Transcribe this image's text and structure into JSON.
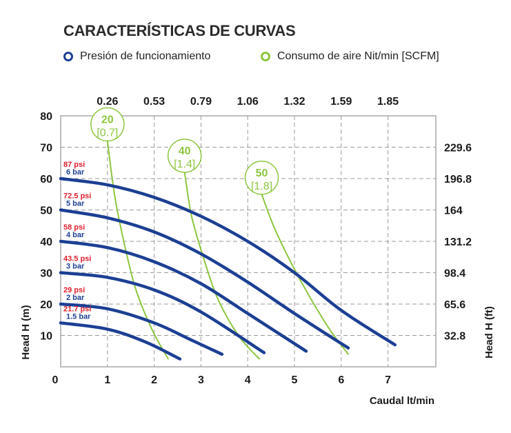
{
  "title": "CARACTERÍSTICAS DE CURVAS",
  "legend": [
    {
      "label": "Presión de funcionamiento",
      "color": "#1c3f94"
    },
    {
      "label": "Consumo de aire Nit/min [SCFM]",
      "color": "#8dc63f"
    }
  ],
  "chart_data": {
    "type": "line",
    "xlabel": "Caudal lt/min",
    "ylabel": "Head H (m)",
    "y2label": "Head H (ft)",
    "xlim": [
      0,
      8
    ],
    "ylim": [
      0,
      80
    ],
    "x_ticks": [
      "0",
      "1",
      "2",
      "3",
      "4",
      "5",
      "6",
      "7"
    ],
    "y_ticks": [
      "10",
      "20",
      "30",
      "40",
      "50",
      "60",
      "70",
      "80"
    ],
    "top_ticks": [
      "0.26",
      "0.53",
      "0.79",
      "1.06",
      "1.32",
      "1.59",
      "1.85"
    ],
    "right_ticks": [
      "32.8",
      "65.6",
      "98.4",
      "131.2",
      "164",
      "196.8",
      "229.6"
    ],
    "grid": true,
    "pressure_series": [
      {
        "psi": "87 psi",
        "bar": "6 bar",
        "color": "#1c3f94",
        "x": [
          0,
          1,
          2,
          3,
          4,
          5,
          6,
          7.15
        ],
        "y": [
          60,
          58,
          54,
          48,
          40,
          30,
          18,
          7
        ]
      },
      {
        "psi": "72.5 psi",
        "bar": "5 bar",
        "color": "#1c3f94",
        "x": [
          0,
          1,
          2,
          3,
          4,
          5,
          6.15
        ],
        "y": [
          50,
          47.5,
          43,
          36,
          27,
          17,
          6
        ]
      },
      {
        "psi": "58 psi",
        "bar": "4 bar",
        "color": "#1c3f94",
        "x": [
          0,
          1,
          2,
          3,
          4,
          5.25
        ],
        "y": [
          40,
          38,
          33.5,
          26.5,
          17,
          5
        ]
      },
      {
        "psi": "43.5 psi",
        "bar": "3 bar",
        "color": "#1c3f94",
        "x": [
          0,
          1,
          2,
          3,
          4.35
        ],
        "y": [
          30,
          28.5,
          24.5,
          17.5,
          4.5
        ]
      },
      {
        "psi": "29 psi",
        "bar": "2 bar",
        "color": "#1c3f94",
        "x": [
          0,
          1,
          2,
          2.8,
          3.45
        ],
        "y": [
          20,
          18.5,
          14,
          8.5,
          4
        ]
      },
      {
        "psi": "21.7 psi",
        "bar": "1.5 bar",
        "color": "#1c3f94",
        "x": [
          0,
          1,
          1.8,
          2.55
        ],
        "y": [
          14,
          12,
          8,
          2.5
        ]
      }
    ],
    "air_series": [
      {
        "label": "20",
        "sub": "[0.7]",
        "color": "#8dc63f",
        "x": [
          1.0,
          1.15,
          1.35,
          1.6,
          1.95,
          2.3
        ],
        "y": [
          72,
          55,
          40,
          25,
          12,
          2.5
        ]
      },
      {
        "label": "40",
        "sub": "[1.4]",
        "color": "#8dc63f",
        "x": [
          2.65,
          2.8,
          3.05,
          3.35,
          3.8,
          4.25
        ],
        "y": [
          62,
          48,
          35,
          22,
          10,
          2.5
        ]
      },
      {
        "label": "50",
        "sub": "[1.8]",
        "color": "#8dc63f",
        "x": [
          4.3,
          4.55,
          4.9,
          5.3,
          5.75,
          6.15
        ],
        "y": [
          55,
          45,
          34,
          23,
          12,
          4
        ]
      }
    ]
  }
}
